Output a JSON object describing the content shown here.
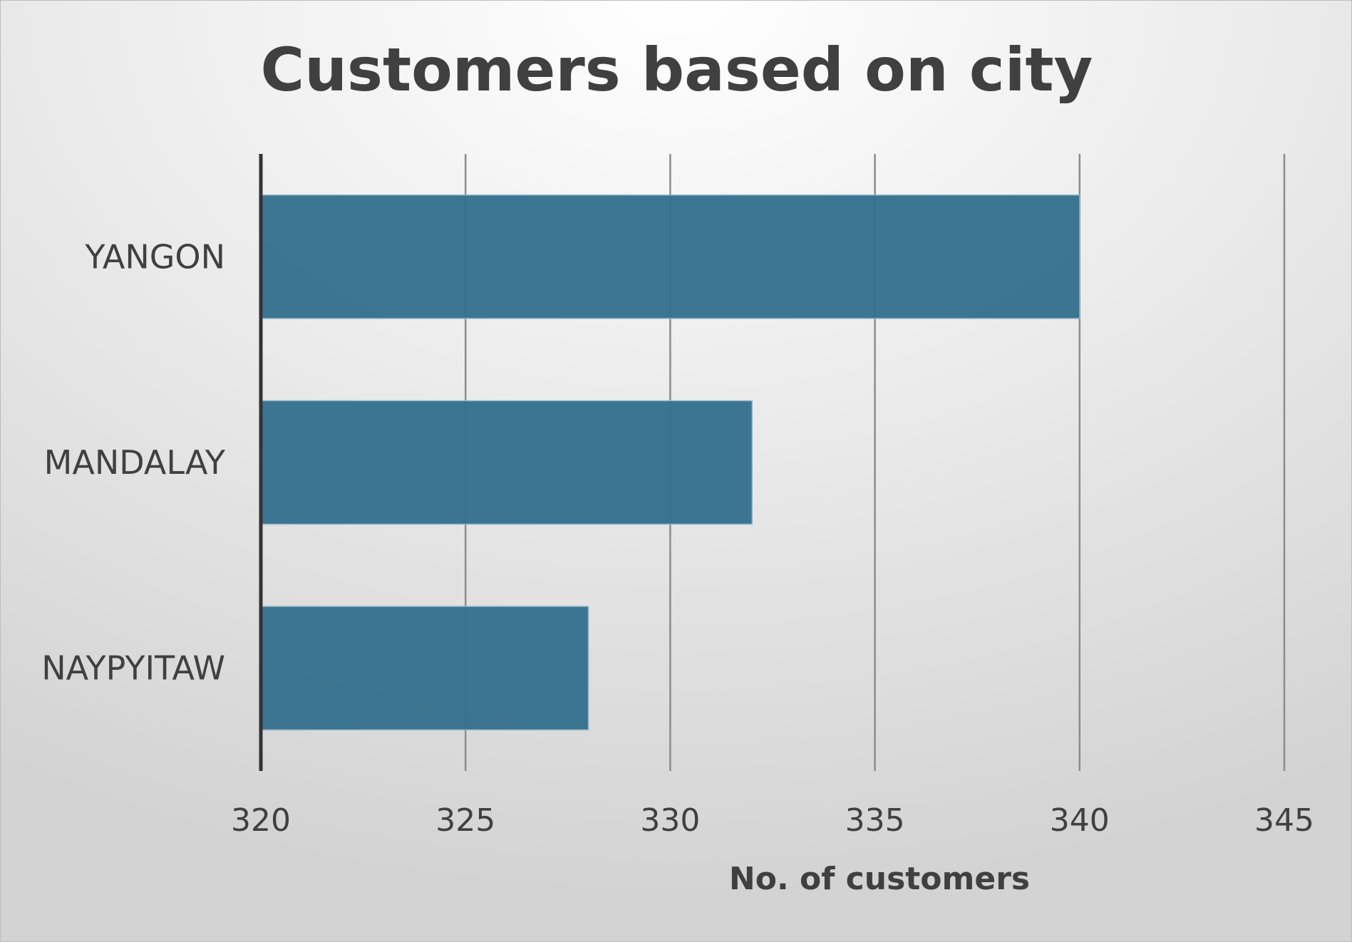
{
  "chart_data": {
    "type": "bar",
    "orientation": "horizontal",
    "title": "Customers based on city",
    "xlabel": "No. of customers",
    "ylabel": "",
    "categories": [
      "YANGON",
      "MANDALAY",
      "NAYPYITAW"
    ],
    "values": [
      340,
      332,
      328
    ],
    "xlim": [
      320,
      345
    ],
    "xticks": [
      "320",
      "325",
      "330",
      "335",
      "340",
      "345"
    ],
    "grid": true,
    "legend": "none",
    "bar_color": "#336F8C"
  }
}
